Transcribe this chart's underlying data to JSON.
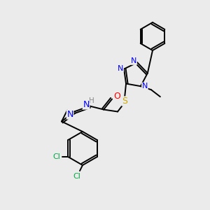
{
  "bg_color": "#ebebeb",
  "atom_colors": {
    "N": "#0000ff",
    "S": "#ccaa00",
    "O": "#ff0000",
    "Cl": "#00aa44",
    "C": "#000000",
    "H": "#888888"
  },
  "figsize": [
    3.0,
    3.0
  ],
  "dpi": 100
}
